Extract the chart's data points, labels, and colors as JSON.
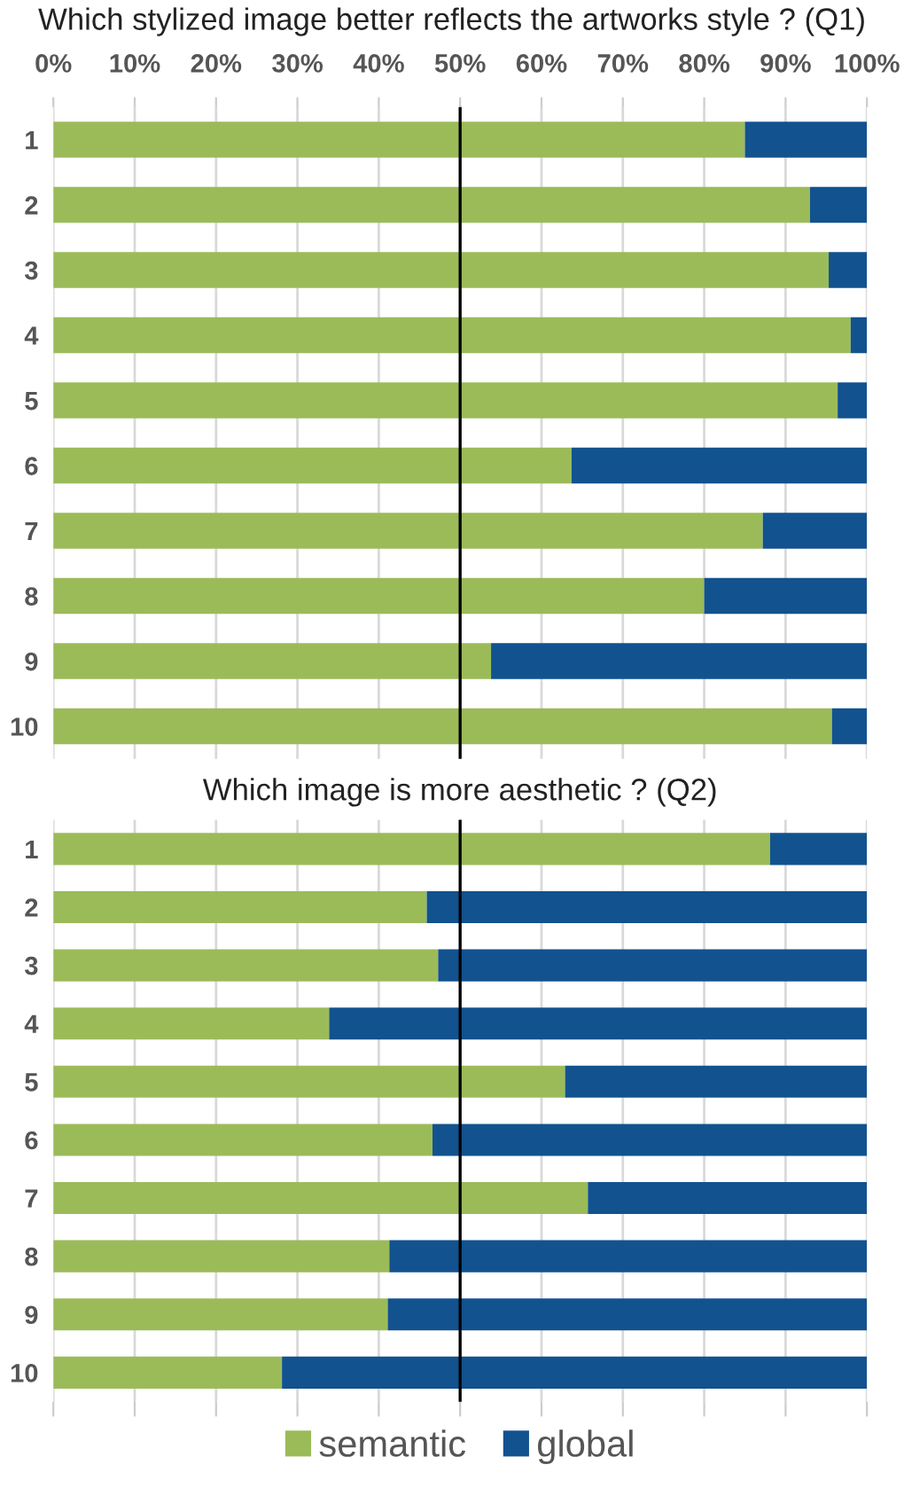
{
  "chart_data": [
    {
      "type": "bar",
      "orientation": "horizontal",
      "stacked": true,
      "title": "Which stylized image better reflects the artworks style ? (Q1)",
      "categories": [
        "1",
        "2",
        "3",
        "4",
        "5",
        "6",
        "7",
        "8",
        "9",
        "10"
      ],
      "series": [
        {
          "color": "#9bbb59",
          "values": [
            85,
            93,
            95.3,
            98,
            96.4,
            63.7,
            87.2,
            80,
            53.8,
            95.7
          ]
        },
        {
          "color": "#12528f",
          "values": [
            15,
            7,
            4.7,
            2,
            3.6,
            36.3,
            12.8,
            20,
            46.2,
            4.3
          ]
        }
      ],
      "xlim": [
        0,
        100
      ],
      "xticks": [
        {
          "value": 0,
          "label": "0%"
        },
        {
          "value": 10,
          "label": "10%"
        },
        {
          "value": 20,
          "label": "20%"
        },
        {
          "value": 30,
          "label": "30%"
        },
        {
          "value": 40,
          "label": "40%"
        },
        {
          "value": 50,
          "label": "50%"
        },
        {
          "value": 60,
          "label": "60%"
        },
        {
          "value": 70,
          "label": "70%"
        },
        {
          "value": 80,
          "label": "80%"
        },
        {
          "value": 90,
          "label": "90%"
        },
        {
          "value": 100,
          "label": "100%"
        }
      ],
      "ref_lines": [
        {
          "axis": "x",
          "value": 50,
          "color": "#000000"
        }
      ],
      "grid": "x"
    },
    {
      "type": "bar",
      "orientation": "horizontal",
      "stacked": true,
      "title": "Which image is more aesthetic ? (Q2)",
      "categories": [
        "1",
        "2",
        "3",
        "4",
        "5",
        "6",
        "7",
        "8",
        "9",
        "10"
      ],
      "series": [
        {
          "name": "semantic",
          "color": "#9bbb59",
          "values": [
            88.1,
            45.9,
            47.3,
            33.9,
            62.9,
            46.6,
            65.7,
            41.3,
            41.1,
            28.1
          ]
        },
        {
          "name": "global",
          "color": "#12528f",
          "values": [
            11.9,
            54.1,
            52.7,
            66.1,
            37.1,
            53.4,
            34.3,
            58.7,
            58.9,
            71.9
          ]
        }
      ],
      "xlim": [
        0,
        100
      ],
      "xticks": [
        {
          "value": 0,
          "label": null
        },
        {
          "value": 10,
          "label": null
        },
        {
          "value": 20,
          "label": null
        },
        {
          "value": 30,
          "label": null
        },
        {
          "value": 40,
          "label": null
        },
        {
          "value": 50,
          "label": null
        },
        {
          "value": 60,
          "label": null
        },
        {
          "value": 70,
          "label": null
        },
        {
          "value": 80,
          "label": null
        },
        {
          "value": 90,
          "label": null
        },
        {
          "value": 100,
          "label": null
        }
      ],
      "ref_lines": [
        {
          "axis": "x",
          "value": 50,
          "color": "#000000"
        }
      ],
      "tick_labels": "y",
      "grid": "x",
      "legend": "bottom"
    }
  ]
}
